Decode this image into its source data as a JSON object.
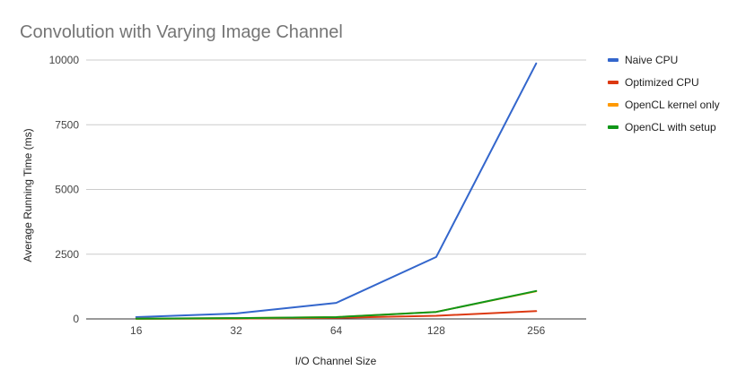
{
  "chart_data": {
    "type": "line",
    "title": "Convolution with Varying Image Channel",
    "xlabel": "I/O Channel Size",
    "ylabel": "Average Running Time (ms)",
    "categories": [
      "16",
      "32",
      "64",
      "128",
      "256"
    ],
    "ylim": [
      0,
      10000
    ],
    "yticks": [
      0,
      2500,
      5000,
      7500,
      10000
    ],
    "grid": true,
    "legend_position": "right",
    "series": [
      {
        "name": "Naive CPU",
        "color": "#3366cc",
        "values": [
          70,
          210,
          620,
          2390,
          9870
        ]
      },
      {
        "name": "Optimized CPU",
        "color": "#dc3912",
        "values": [
          5,
          15,
          40,
          120,
          300
        ]
      },
      {
        "name": "OpenCL kernel only",
        "color": "#ff9900",
        "values": [
          10,
          30,
          70,
          270,
          1070
        ]
      },
      {
        "name": "OpenCL with setup",
        "color": "#109618",
        "values": [
          10,
          30,
          70,
          270,
          1080
        ]
      }
    ]
  }
}
